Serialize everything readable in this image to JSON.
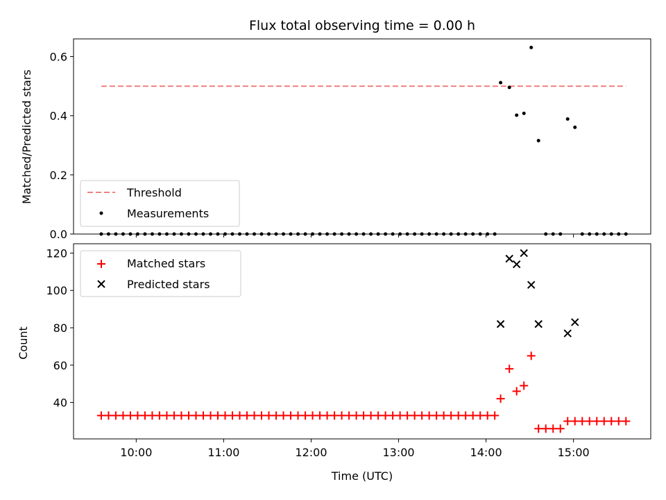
{
  "title": "Flux total observing time = 0.00 h",
  "colors": {
    "threshold": "#f08080",
    "measurement": "#000000",
    "matched": "#ff0000",
    "predicted": "#000000"
  },
  "chart_data": [
    {
      "type": "scatter",
      "title": "Flux total observing time = 0.00 h",
      "ylabel": "Matched/Predicted stars",
      "xlabel": "",
      "xlim": [
        "09:17",
        "15:53"
      ],
      "ylim": [
        0,
        0.66
      ],
      "yticks": [
        0.0,
        0.2,
        0.4,
        0.6
      ],
      "ytick_labels": [
        "0.0",
        "0.2",
        "0.4",
        "0.6"
      ],
      "xticks": [
        "10:00",
        "11:00",
        "12:00",
        "13:00",
        "14:00",
        "15:00"
      ],
      "legend_position": "lower-left",
      "legend": [
        "Threshold",
        "Measurements"
      ],
      "threshold": {
        "name": "Threshold",
        "x": [
          "09:36",
          "15:36"
        ],
        "y": 0.5,
        "style": "dashed"
      },
      "series": [
        {
          "name": "Measurements",
          "points": [
            [
              "09:36",
              0
            ],
            [
              "09:41",
              0
            ],
            [
              "09:46",
              0
            ],
            [
              "09:51",
              0
            ],
            [
              "09:56",
              0
            ],
            [
              "10:01",
              0
            ],
            [
              "10:06",
              0
            ],
            [
              "10:11",
              0
            ],
            [
              "10:16",
              0
            ],
            [
              "10:21",
              0
            ],
            [
              "10:26",
              0
            ],
            [
              "10:31",
              0
            ],
            [
              "10:36",
              0
            ],
            [
              "10:41",
              0
            ],
            [
              "10:46",
              0
            ],
            [
              "10:51",
              0
            ],
            [
              "10:56",
              0
            ],
            [
              "11:01",
              0
            ],
            [
              "11:06",
              0
            ],
            [
              "11:11",
              0
            ],
            [
              "11:16",
              0
            ],
            [
              "11:21",
              0
            ],
            [
              "11:26",
              0
            ],
            [
              "11:31",
              0
            ],
            [
              "11:36",
              0
            ],
            [
              "11:41",
              0
            ],
            [
              "11:46",
              0
            ],
            [
              "11:51",
              0
            ],
            [
              "11:56",
              0
            ],
            [
              "12:01",
              0
            ],
            [
              "12:06",
              0
            ],
            [
              "12:11",
              0
            ],
            [
              "12:16",
              0
            ],
            [
              "12:21",
              0
            ],
            [
              "12:26",
              0
            ],
            [
              "12:31",
              0
            ],
            [
              "12:36",
              0
            ],
            [
              "12:41",
              0
            ],
            [
              "12:46",
              0
            ],
            [
              "12:51",
              0
            ],
            [
              "12:56",
              0
            ],
            [
              "13:01",
              0
            ],
            [
              "13:06",
              0
            ],
            [
              "13:11",
              0
            ],
            [
              "13:16",
              0
            ],
            [
              "13:21",
              0
            ],
            [
              "13:26",
              0
            ],
            [
              "13:31",
              0
            ],
            [
              "13:36",
              0
            ],
            [
              "13:41",
              0
            ],
            [
              "13:46",
              0
            ],
            [
              "13:51",
              0
            ],
            [
              "13:56",
              0
            ],
            [
              "14:01",
              0
            ],
            [
              "14:06",
              0
            ],
            [
              "14:10",
              0.512
            ],
            [
              "14:16",
              0.496
            ],
            [
              "14:21",
              0.402
            ],
            [
              "14:26",
              0.408
            ],
            [
              "14:31",
              0.631
            ],
            [
              "14:36",
              0.316
            ],
            [
              "14:41",
              0
            ],
            [
              "14:46",
              0
            ],
            [
              "14:51",
              0
            ],
            [
              "14:56",
              0.389
            ],
            [
              "15:01",
              0.361
            ],
            [
              "15:06",
              0
            ],
            [
              "15:11",
              0
            ],
            [
              "15:16",
              0
            ],
            [
              "15:21",
              0
            ],
            [
              "15:26",
              0
            ],
            [
              "15:31",
              0
            ],
            [
              "15:36",
              0
            ]
          ]
        }
      ]
    },
    {
      "type": "scatter",
      "title": "",
      "ylabel": "Count",
      "xlabel": "Time (UTC)",
      "xlim": [
        "09:17",
        "15:53"
      ],
      "ylim": [
        20.5,
        125
      ],
      "yticks": [
        40,
        60,
        80,
        100,
        120
      ],
      "ytick_labels": [
        "40",
        "60",
        "80",
        "100",
        "120"
      ],
      "xticks": [
        "10:00",
        "11:00",
        "12:00",
        "13:00",
        "14:00",
        "15:00"
      ],
      "xtick_labels": [
        "10:00",
        "11:00",
        "12:00",
        "13:00",
        "14:00",
        "15:00"
      ],
      "legend_position": "upper-left",
      "legend": [
        "Matched stars",
        "Predicted stars"
      ],
      "series": [
        {
          "name": "Matched stars",
          "marker": "plus",
          "points": [
            [
              "09:36",
              33
            ],
            [
              "09:41",
              33
            ],
            [
              "09:46",
              33
            ],
            [
              "09:51",
              33
            ],
            [
              "09:56",
              33
            ],
            [
              "10:01",
              33
            ],
            [
              "10:06",
              33
            ],
            [
              "10:11",
              33
            ],
            [
              "10:16",
              33
            ],
            [
              "10:21",
              33
            ],
            [
              "10:26",
              33
            ],
            [
              "10:31",
              33
            ],
            [
              "10:36",
              33
            ],
            [
              "10:41",
              33
            ],
            [
              "10:46",
              33
            ],
            [
              "10:51",
              33
            ],
            [
              "10:56",
              33
            ],
            [
              "11:01",
              33
            ],
            [
              "11:06",
              33
            ],
            [
              "11:11",
              33
            ],
            [
              "11:16",
              33
            ],
            [
              "11:21",
              33
            ],
            [
              "11:26",
              33
            ],
            [
              "11:31",
              33
            ],
            [
              "11:36",
              33
            ],
            [
              "11:41",
              33
            ],
            [
              "11:46",
              33
            ],
            [
              "11:51",
              33
            ],
            [
              "11:56",
              33
            ],
            [
              "12:01",
              33
            ],
            [
              "12:06",
              33
            ],
            [
              "12:11",
              33
            ],
            [
              "12:16",
              33
            ],
            [
              "12:21",
              33
            ],
            [
              "12:26",
              33
            ],
            [
              "12:31",
              33
            ],
            [
              "12:36",
              33
            ],
            [
              "12:41",
              33
            ],
            [
              "12:46",
              33
            ],
            [
              "12:51",
              33
            ],
            [
              "12:56",
              33
            ],
            [
              "13:01",
              33
            ],
            [
              "13:06",
              33
            ],
            [
              "13:11",
              33
            ],
            [
              "13:16",
              33
            ],
            [
              "13:21",
              33
            ],
            [
              "13:26",
              33
            ],
            [
              "13:31",
              33
            ],
            [
              "13:36",
              33
            ],
            [
              "13:41",
              33
            ],
            [
              "13:46",
              33
            ],
            [
              "13:51",
              33
            ],
            [
              "13:56",
              33
            ],
            [
              "14:01",
              33
            ],
            [
              "14:06",
              33
            ],
            [
              "14:10",
              42
            ],
            [
              "14:16",
              58
            ],
            [
              "14:21",
              46
            ],
            [
              "14:26",
              49
            ],
            [
              "14:31",
              65
            ],
            [
              "14:36",
              26
            ],
            [
              "14:41",
              26
            ],
            [
              "14:46",
              26
            ],
            [
              "14:51",
              26
            ],
            [
              "14:56",
              30
            ],
            [
              "15:01",
              30
            ],
            [
              "15:06",
              30
            ],
            [
              "15:11",
              30
            ],
            [
              "15:16",
              30
            ],
            [
              "15:21",
              30
            ],
            [
              "15:26",
              30
            ],
            [
              "15:31",
              30
            ],
            [
              "15:36",
              30
            ]
          ]
        },
        {
          "name": "Predicted stars",
          "marker": "x",
          "points": [
            [
              "14:10",
              82
            ],
            [
              "14:16",
              117
            ],
            [
              "14:21",
              114
            ],
            [
              "14:26",
              120
            ],
            [
              "14:31",
              103
            ],
            [
              "14:36",
              82
            ],
            [
              "14:56",
              77
            ],
            [
              "15:01",
              83
            ]
          ]
        }
      ]
    }
  ]
}
